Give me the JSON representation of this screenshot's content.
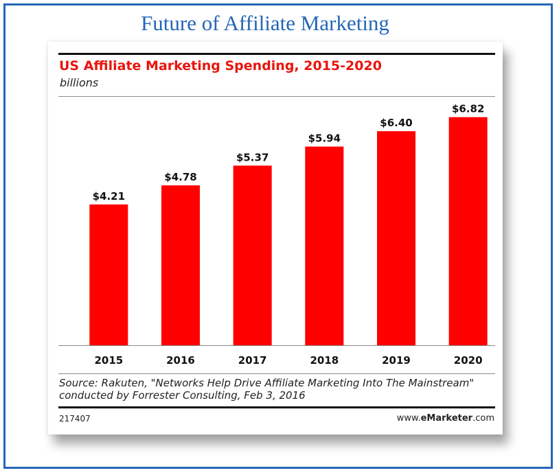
{
  "slide": {
    "title": "Future of Affiliate Marketing",
    "border_color": "#2466b6"
  },
  "chart": {
    "footer_source": "Source: Rakuten, \"Networks Help Drive Affiliate Marketing Into The Mainstream\" conducted by Forrester Consulting, Feb 3, 2016",
    "chart_id": "217407",
    "site_prefix": "www.",
    "site_brand": "eMarketer",
    "site_suffix": ".com"
  },
  "chart_data": {
    "type": "bar",
    "title": "US Affiliate Marketing Spending, 2015-2020",
    "subtitle": "billions",
    "categories": [
      "2015",
      "2016",
      "2017",
      "2018",
      "2019",
      "2020"
    ],
    "values": [
      4.21,
      4.78,
      5.37,
      5.94,
      6.4,
      6.82
    ],
    "data_labels": [
      "$4.21",
      "$4.78",
      "$5.37",
      "$5.94",
      "$6.40",
      "$6.82"
    ],
    "ylim": [
      0,
      7.1
    ],
    "grid": false,
    "bar_color": "#ff0000",
    "title_color": "#e8150d"
  }
}
